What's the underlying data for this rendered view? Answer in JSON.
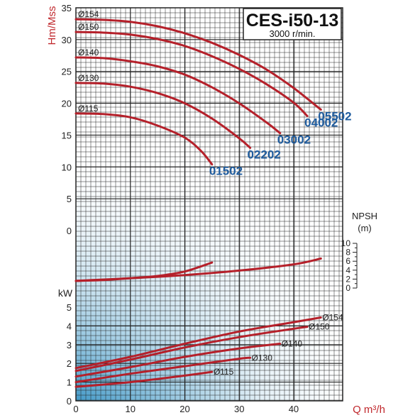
{
  "chart_data": {
    "type": "line",
    "title": "CES-i50-13",
    "subtitle": "3000 r/min.",
    "xlabel": "Q m³/h",
    "x_ticks": [
      "0",
      "10",
      "20",
      "30",
      "40"
    ],
    "xlim": [
      0,
      49
    ],
    "head": {
      "ylabel": "Hm/Mss",
      "y_ticks": [
        "35",
        "30",
        "25",
        "20",
        "15",
        "10",
        "5",
        "0"
      ],
      "ylim": [
        0,
        35
      ],
      "series": [
        {
          "diameter": "Ø154",
          "model": "05502",
          "points": [
            [
              0,
              33.2
            ],
            [
              5,
              33.1
            ],
            [
              10,
              32.8
            ],
            [
              15,
              32.1
            ],
            [
              20,
              31.0
            ],
            [
              25,
              29.5
            ],
            [
              30,
              27.6
            ],
            [
              35,
              25.3
            ],
            [
              40,
              22.4
            ],
            [
              45,
              19.0
            ]
          ]
        },
        {
          "diameter": "Ø150",
          "model": "04002",
          "points": [
            [
              0,
              31.2
            ],
            [
              5,
              31.1
            ],
            [
              10,
              30.8
            ],
            [
              15,
              30.1
            ],
            [
              20,
              29.0
            ],
            [
              25,
              27.4
            ],
            [
              30,
              25.4
            ],
            [
              35,
              23.0
            ],
            [
              40,
              20.1
            ],
            [
              42.5,
              18.0
            ]
          ]
        },
        {
          "diameter": "Ø140",
          "model": "03002",
          "points": [
            [
              0,
              27.2
            ],
            [
              5,
              27.1
            ],
            [
              10,
              26.6
            ],
            [
              15,
              25.8
            ],
            [
              20,
              24.5
            ],
            [
              25,
              22.5
            ],
            [
              30,
              20.0
            ],
            [
              35,
              17.0
            ],
            [
              37.5,
              15.3
            ]
          ]
        },
        {
          "diameter": "Ø130",
          "model": "02202",
          "points": [
            [
              0,
              23.2
            ],
            [
              5,
              23.1
            ],
            [
              10,
              22.6
            ],
            [
              15,
              21.6
            ],
            [
              20,
              20.0
            ],
            [
              25,
              17.6
            ],
            [
              30,
              14.5
            ],
            [
              32,
              13.0
            ]
          ]
        },
        {
          "diameter": "Ø115",
          "model": "01502",
          "points": [
            [
              0,
              18.4
            ],
            [
              5,
              18.3
            ],
            [
              10,
              17.8
            ],
            [
              15,
              16.5
            ],
            [
              20,
              14.6
            ],
            [
              23,
              12.5
            ],
            [
              25,
              10.4
            ]
          ]
        }
      ]
    },
    "npsh": {
      "ylabel": "NPSH",
      "unit": "(m)",
      "y_ticks": [
        "10",
        "8",
        "6",
        "4",
        "2",
        "0"
      ],
      "ylim": [
        0,
        10
      ],
      "series": [
        {
          "points": [
            [
              0,
              1.6
            ],
            [
              5,
              1.8
            ],
            [
              10,
              2.2
            ],
            [
              15,
              2.7
            ],
            [
              20,
              3.7
            ],
            [
              25,
              5.7
            ]
          ]
        },
        {
          "points": [
            [
              0,
              1.6
            ],
            [
              10,
              2.2
            ],
            [
              20,
              2.9
            ],
            [
              30,
              3.9
            ],
            [
              40,
              5.3
            ],
            [
              45,
              6.6
            ]
          ]
        }
      ]
    },
    "power": {
      "ylabel": "kW",
      "y_ticks": [
        "5",
        "4",
        "3",
        "2",
        "1",
        "0"
      ],
      "ylim": [
        0,
        5
      ],
      "series": [
        {
          "diameter": "Ø154",
          "points": [
            [
              0,
              1.75
            ],
            [
              10,
              2.35
            ],
            [
              20,
              3.05
            ],
            [
              30,
              3.7
            ],
            [
              40,
              4.2
            ],
            [
              45,
              4.45
            ]
          ]
        },
        {
          "diameter": "Ø150",
          "points": [
            [
              0,
              1.6
            ],
            [
              10,
              2.2
            ],
            [
              20,
              2.85
            ],
            [
              30,
              3.4
            ],
            [
              40,
              3.85
            ],
            [
              42.5,
              3.95
            ]
          ]
        },
        {
          "diameter": "Ø140",
          "points": [
            [
              0,
              1.3
            ],
            [
              10,
              1.8
            ],
            [
              20,
              2.35
            ],
            [
              30,
              2.8
            ],
            [
              37.5,
              3.05
            ]
          ]
        },
        {
          "diameter": "Ø130",
          "points": [
            [
              0,
              1.0
            ],
            [
              10,
              1.45
            ],
            [
              20,
              1.85
            ],
            [
              30,
              2.25
            ],
            [
              32,
              2.3
            ]
          ]
        },
        {
          "diameter": "Ø115",
          "points": [
            [
              0,
              0.75
            ],
            [
              10,
              1.0
            ],
            [
              20,
              1.35
            ],
            [
              25,
              1.55
            ]
          ]
        }
      ]
    },
    "colors": {
      "curve": "#b5202a",
      "model_label": "#1f5c9e",
      "axis_text_red": "#c0282d",
      "grid": "#222222",
      "gradient_dark": "#2f8fc2",
      "gradient_light": "#ffffff"
    }
  }
}
